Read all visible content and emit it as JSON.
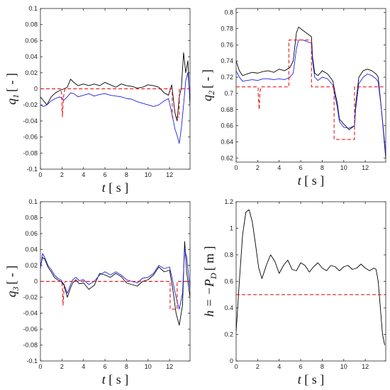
{
  "colors": {
    "series_black": "#000000",
    "series_blue": "#1f1fe6",
    "reference": "#e60000"
  },
  "chart_data": [
    {
      "id": "q1",
      "type": "line",
      "xlabel": {
        "var": "t",
        "unit": "[ s ]"
      },
      "ylabel": {
        "var": "q",
        "sub": "1",
        "unit": "[ - ]"
      },
      "xlim": [
        0,
        13.9
      ],
      "ylim": [
        -0.1,
        0.1
      ],
      "xticks": [
        "0",
        "2",
        "4",
        "6",
        "8",
        "10",
        "12"
      ],
      "yticks": [
        "-0.1",
        "-0.08",
        "-0.06",
        "-0.04",
        "-0.02",
        "0",
        "0.02",
        "0.04",
        "0.06",
        "0.08",
        "0.1"
      ],
      "xtick_values": [
        0,
        2,
        4,
        6,
        8,
        10,
        12
      ],
      "ytick_values": [
        -0.1,
        -0.08,
        -0.06,
        -0.04,
        -0.02,
        0,
        0.02,
        0.04,
        0.06,
        0.08,
        0.1
      ],
      "series": [
        {
          "color": "black",
          "style": "solid",
          "x": [
            0,
            0.3,
            0.6,
            1,
            1.4,
            1.8,
            2.2,
            2.5,
            2.8,
            3.1,
            3.5,
            4,
            4.5,
            5,
            5.5,
            6,
            6.5,
            7,
            7.5,
            8,
            8.5,
            9,
            9.5,
            10,
            10.5,
            11,
            11.5,
            11.9,
            12.2,
            12.5,
            12.7,
            12.9,
            13.1,
            13.3,
            13.5,
            13.7,
            13.9
          ],
          "y": [
            -0.01,
            -0.015,
            -0.02,
            -0.01,
            -0.005,
            -0.002,
            0,
            0.002,
            0.012,
            0.008,
            0.004,
            0.006,
            0.004,
            0.006,
            0.004,
            0.008,
            0.005,
            0.002,
            0.006,
            0.004,
            0.003,
            0.001,
            0.002,
            0.005,
            0.004,
            0.002,
            -0.005,
            -0.008,
            0.005,
            -0.03,
            -0.04,
            -0.01,
            0.002,
            0.045,
            0.02,
            0.035,
            -0.02
          ]
        },
        {
          "color": "blue",
          "style": "solid",
          "x": [
            0,
            0.3,
            0.6,
            1,
            1.4,
            1.8,
            2.2,
            2.5,
            2.8,
            3.1,
            3.5,
            4,
            4.5,
            5,
            5.5,
            6,
            6.5,
            7,
            7.5,
            8,
            8.5,
            9,
            9.5,
            10,
            10.5,
            11,
            11.5,
            11.9,
            12.2,
            12.5,
            12.7,
            12.9,
            13.1,
            13.3,
            13.5,
            13.7,
            13.9
          ],
          "y": [
            -0.02,
            -0.022,
            -0.02,
            -0.015,
            -0.012,
            -0.01,
            -0.014,
            -0.01,
            -0.005,
            -0.006,
            -0.01,
            -0.008,
            -0.006,
            -0.009,
            -0.007,
            -0.006,
            -0.008,
            -0.009,
            -0.01,
            -0.012,
            -0.013,
            -0.016,
            -0.018,
            -0.02,
            -0.022,
            -0.02,
            -0.015,
            -0.012,
            -0.03,
            -0.05,
            -0.058,
            -0.068,
            -0.048,
            -0.02,
            0.01,
            0.02,
            -0.01
          ]
        },
        {
          "color": "red",
          "style": "dashed",
          "x": [
            0,
            1.9,
            2.0,
            2.0,
            2.05,
            2.1,
            2.15,
            2.2,
            2.3,
            12.2,
            12.25,
            12.25,
            12.9,
            12.9,
            13.9
          ],
          "y": [
            0,
            0,
            -0.01,
            -0.025,
            -0.035,
            -0.02,
            -0.01,
            -0.005,
            0,
            0,
            0,
            -0.035,
            -0.035,
            0,
            0
          ]
        }
      ]
    },
    {
      "id": "q2",
      "type": "line",
      "xlabel": {
        "var": "t",
        "unit": "[ s ]"
      },
      "ylabel": {
        "var": "q",
        "sub": "2",
        "unit": "[ - ]"
      },
      "xlim": [
        0,
        13.9
      ],
      "ylim": [
        0.615,
        0.805
      ],
      "xticks": [
        "0",
        "2",
        "4",
        "6",
        "8",
        "10",
        "12"
      ],
      "yticks": [
        "0.62",
        "0.64",
        "0.66",
        "0.68",
        "0.7",
        "0.72",
        "0.74",
        "0.76",
        "0.78",
        "0.8"
      ],
      "xtick_values": [
        0,
        2,
        4,
        6,
        8,
        10,
        12
      ],
      "ytick_values": [
        0.62,
        0.64,
        0.66,
        0.68,
        0.7,
        0.72,
        0.74,
        0.76,
        0.78,
        0.8
      ],
      "series": [
        {
          "color": "black",
          "style": "solid",
          "x": [
            0,
            0.3,
            0.6,
            1,
            1.5,
            2,
            2.5,
            3,
            3.5,
            4,
            4.5,
            5,
            5.3,
            5.6,
            5.8,
            6.2,
            6.6,
            7,
            7.1,
            7.3,
            7.6,
            8,
            8.5,
            9,
            9.2,
            9.4,
            9.6,
            10,
            10.5,
            11,
            11.1,
            11.4,
            11.8,
            12.2,
            12.6,
            13,
            13.2,
            13.5,
            13.9
          ],
          "y": [
            0.74,
            0.728,
            0.722,
            0.724,
            0.726,
            0.725,
            0.727,
            0.728,
            0.726,
            0.73,
            0.728,
            0.732,
            0.74,
            0.775,
            0.782,
            0.778,
            0.774,
            0.77,
            0.745,
            0.725,
            0.722,
            0.728,
            0.724,
            0.715,
            0.7,
            0.688,
            0.668,
            0.662,
            0.655,
            0.66,
            0.685,
            0.72,
            0.728,
            0.73,
            0.728,
            0.724,
            0.72,
            0.68,
            0.62
          ]
        },
        {
          "color": "blue",
          "style": "solid",
          "x": [
            0,
            0.3,
            0.6,
            1,
            1.5,
            2,
            2.5,
            3,
            3.5,
            4,
            4.5,
            5,
            5.3,
            5.6,
            5.8,
            6.2,
            6.6,
            7,
            7.1,
            7.3,
            7.6,
            8,
            8.5,
            9,
            9.2,
            9.4,
            9.6,
            10,
            10.5,
            11,
            11.1,
            11.4,
            11.8,
            12.2,
            12.6,
            13,
            13.2,
            13.5,
            13.9
          ],
          "y": [
            0.728,
            0.72,
            0.715,
            0.716,
            0.717,
            0.716,
            0.718,
            0.718,
            0.717,
            0.718,
            0.717,
            0.72,
            0.725,
            0.755,
            0.766,
            0.766,
            0.764,
            0.762,
            0.74,
            0.72,
            0.716,
            0.72,
            0.718,
            0.71,
            0.696,
            0.683,
            0.665,
            0.658,
            0.657,
            0.66,
            0.68,
            0.712,
            0.72,
            0.724,
            0.722,
            0.718,
            0.714,
            0.68,
            0.625
          ]
        },
        {
          "color": "red",
          "style": "dashed",
          "x": [
            0,
            2.05,
            2.05,
            2.1,
            2.15,
            2.2,
            2.3,
            4.9,
            4.9,
            7.0,
            7.0,
            9.1,
            9.1,
            11.0,
            11.0,
            13.9
          ],
          "y": [
            0.708,
            0.708,
            0.7,
            0.688,
            0.68,
            0.7,
            0.708,
            0.708,
            0.766,
            0.766,
            0.708,
            0.708,
            0.643,
            0.643,
            0.708,
            0.708
          ]
        }
      ]
    },
    {
      "id": "q3",
      "type": "line",
      "xlabel": {
        "var": "t",
        "unit": "[ s ]"
      },
      "ylabel": {
        "var": "q",
        "sub": "3",
        "unit": "[ - ]"
      },
      "xlim": [
        0,
        13.9
      ],
      "ylim": [
        -0.1,
        0.1
      ],
      "xticks": [
        "0",
        "2",
        "4",
        "6",
        "8",
        "10",
        "12"
      ],
      "yticks": [
        "-0.1",
        "-0.08",
        "-0.06",
        "-0.04",
        "-0.02",
        "0",
        "0.02",
        "0.04",
        "0.06",
        "0.08",
        "0.1"
      ],
      "xtick_values": [
        0,
        2,
        4,
        6,
        8,
        10,
        12
      ],
      "ytick_values": [
        -0.1,
        -0.08,
        -0.06,
        -0.04,
        -0.02,
        0,
        0.02,
        0.04,
        0.06,
        0.08,
        0.1
      ],
      "series": [
        {
          "color": "black",
          "style": "solid",
          "x": [
            0,
            0.2,
            0.4,
            0.7,
            1,
            1.3,
            1.6,
            1.9,
            2.2,
            2.5,
            2.8,
            3,
            3.3,
            3.6,
            4,
            4.5,
            5,
            5.5,
            6,
            6.5,
            7,
            7.5,
            8,
            8.5,
            9,
            9.5,
            10,
            10.5,
            11,
            11.5,
            12,
            12.3,
            12.6,
            12.9,
            13.2,
            13.4,
            13.6,
            13.9
          ],
          "y": [
            0.02,
            0.03,
            0.028,
            0.018,
            0.012,
            0.005,
            0.002,
            0,
            -0.005,
            -0.02,
            -0.008,
            -0.002,
            0.002,
            -0.003,
            -0.002,
            -0.01,
            -0.005,
            0.01,
            0.008,
            0.005,
            0.01,
            0.006,
            -0.002,
            -0.004,
            -0.006,
            0,
            0.002,
            0.008,
            0.018,
            0.012,
            0.014,
            -0.01,
            -0.04,
            -0.055,
            -0.03,
            0.05,
            0.01,
            -0.02
          ]
        },
        {
          "color": "blue",
          "style": "solid",
          "x": [
            0,
            0.2,
            0.4,
            0.7,
            1,
            1.3,
            1.6,
            1.9,
            2.2,
            2.5,
            2.8,
            3,
            3.3,
            3.6,
            4,
            4.5,
            5,
            5.5,
            6,
            6.5,
            7,
            7.5,
            8,
            8.5,
            9,
            9.5,
            10,
            10.5,
            11,
            11.5,
            12,
            12.3,
            12.6,
            12.9,
            13.2,
            13.4,
            13.6,
            13.9
          ],
          "y": [
            0.015,
            0.035,
            0.03,
            0.02,
            0.015,
            0.008,
            0.004,
            0.002,
            -0.004,
            -0.015,
            -0.004,
            0.002,
            0.005,
            0.001,
            0.002,
            -0.004,
            0,
            0.008,
            0.012,
            0.008,
            0.012,
            0.008,
            0.002,
            0,
            -0.002,
            0.004,
            0.005,
            0.01,
            0.02,
            0.016,
            0.018,
            0,
            -0.02,
            -0.035,
            -0.015,
            0.04,
            0.03,
            -0.01
          ]
        },
        {
          "color": "red",
          "style": "dashed",
          "x": [
            0,
            2.0,
            2.05,
            2.1,
            2.15,
            2.2,
            2.3,
            12.0,
            12.05,
            12.05,
            12.7,
            12.7,
            13.9
          ],
          "y": [
            0,
            0,
            -0.01,
            -0.03,
            -0.02,
            -0.008,
            0,
            0,
            0,
            -0.035,
            -0.035,
            0,
            0
          ]
        }
      ]
    },
    {
      "id": "h",
      "type": "line",
      "xlabel": {
        "var": "t",
        "unit": "[ s ]"
      },
      "ylabel": {
        "var": "h = −P",
        "sub": "D",
        "unit": "[ m ]"
      },
      "xlim": [
        0,
        13.9
      ],
      "ylim": [
        0,
        1.2
      ],
      "xticks": [
        "0",
        "2",
        "4",
        "6",
        "8",
        "10",
        "12"
      ],
      "yticks": [
        "0",
        "0.2",
        "0.4",
        "0.6",
        "0.8",
        "1",
        "1.2"
      ],
      "xtick_values": [
        0,
        2,
        4,
        6,
        8,
        10,
        12
      ],
      "ytick_values": [
        0,
        0.2,
        0.4,
        0.6,
        0.8,
        1,
        1.2
      ],
      "series": [
        {
          "color": "black",
          "style": "solid",
          "x": [
            0,
            0.3,
            0.6,
            0.9,
            1.2,
            1.5,
            1.8,
            2.1,
            2.4,
            2.8,
            3.2,
            3.6,
            4.0,
            4.4,
            4.8,
            5.2,
            5.6,
            6.0,
            6.4,
            6.8,
            7.2,
            7.6,
            8.0,
            8.4,
            8.8,
            9.2,
            9.6,
            10.0,
            10.4,
            10.8,
            11.2,
            11.6,
            12.0,
            12.4,
            12.8,
            13.0,
            13.2,
            13.4,
            13.6,
            13.8
          ],
          "y": [
            0.22,
            0.6,
            0.95,
            1.12,
            1.14,
            1.05,
            0.88,
            0.7,
            0.62,
            0.72,
            0.8,
            0.75,
            0.66,
            0.72,
            0.76,
            0.69,
            0.68,
            0.74,
            0.72,
            0.67,
            0.71,
            0.74,
            0.7,
            0.68,
            0.72,
            0.71,
            0.68,
            0.71,
            0.72,
            0.69,
            0.7,
            0.73,
            0.7,
            0.68,
            0.7,
            0.69,
            0.6,
            0.4,
            0.2,
            0.12
          ]
        },
        {
          "color": "red",
          "style": "dashed",
          "x": [
            0,
            13.9
          ],
          "y": [
            0.5,
            0.5
          ]
        }
      ]
    }
  ]
}
